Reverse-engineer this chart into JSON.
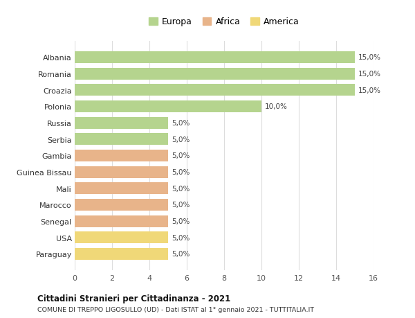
{
  "categories": [
    "Albania",
    "Romania",
    "Croazia",
    "Polonia",
    "Russia",
    "Serbia",
    "Gambia",
    "Guinea Bissau",
    "Mali",
    "Marocco",
    "Senegal",
    "USA",
    "Paraguay"
  ],
  "values": [
    15.0,
    15.0,
    15.0,
    10.0,
    5.0,
    5.0,
    5.0,
    5.0,
    5.0,
    5.0,
    5.0,
    5.0,
    5.0
  ],
  "colors": [
    "#b5d48e",
    "#b5d48e",
    "#b5d48e",
    "#b5d48e",
    "#b5d48e",
    "#b5d48e",
    "#e8b48a",
    "#e8b48a",
    "#e8b48a",
    "#e8b48a",
    "#e8b48a",
    "#f0d878",
    "#f0d878"
  ],
  "labels": [
    "15,0%",
    "15,0%",
    "15,0%",
    "10,0%",
    "5,0%",
    "5,0%",
    "5,0%",
    "5,0%",
    "5,0%",
    "5,0%",
    "5,0%",
    "5,0%",
    "5,0%"
  ],
  "legend_labels": [
    "Europa",
    "Africa",
    "America"
  ],
  "legend_colors": [
    "#b5d48e",
    "#e8b48a",
    "#f0d878"
  ],
  "title": "Cittadini Stranieri per Cittadinanza - 2021",
  "subtitle": "COMUNE DI TREPPO LIGOSULLO (UD) - Dati ISTAT al 1° gennaio 2021 - TUTTITALIA.IT",
  "xlim": [
    0,
    16
  ],
  "xticks": [
    0,
    2,
    4,
    6,
    8,
    10,
    12,
    14,
    16
  ],
  "background_color": "#ffffff",
  "grid_color": "#dddddd",
  "bar_height": 0.72
}
